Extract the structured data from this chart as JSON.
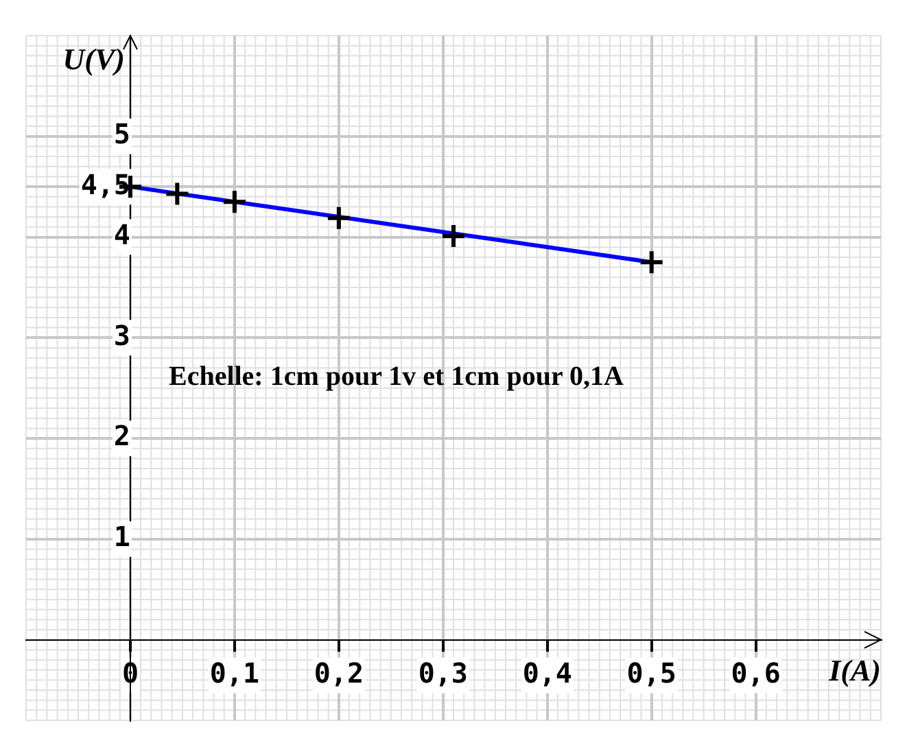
{
  "chart_data": {
    "type": "scatter",
    "xlabel": "I(A)",
    "ylabel": "U(V)",
    "annotations": [
      "Echelle: 1cm pour 1v et 1cm pour 0,1A"
    ],
    "series": [
      {
        "color": "#000000",
        "x": [
          0,
          0.045,
          0.1,
          0.2,
          0.31,
          0.5
        ],
        "values": [
          4.5,
          4.43,
          4.35,
          4.19,
          4.01,
          3.75
        ],
        "marker": "cross"
      },
      {
        "type": "line",
        "color": "#0000ff",
        "x": [
          0,
          0.5
        ],
        "values": [
          4.5,
          3.75
        ],
        "marker": "none"
      }
    ],
    "xlim": [
      -0.1,
      0.72
    ],
    "ylim": [
      -0.8,
      6
    ],
    "xticks": [
      0,
      {
        "value": 0.1,
        "label": "0,1"
      },
      {
        "value": 0.2,
        "label": "0,2"
      },
      {
        "value": 0.3,
        "label": "0,3"
      },
      {
        "value": 0.4,
        "label": "0,4"
      },
      {
        "value": 0.5,
        "label": "0,5"
      },
      {
        "value": 0.6,
        "label": "0,6"
      }
    ],
    "yticks": [
      1,
      2,
      3,
      4,
      {
        "value": 4.5,
        "label": "4,5"
      },
      5
    ],
    "grid": true,
    "legend": false
  }
}
